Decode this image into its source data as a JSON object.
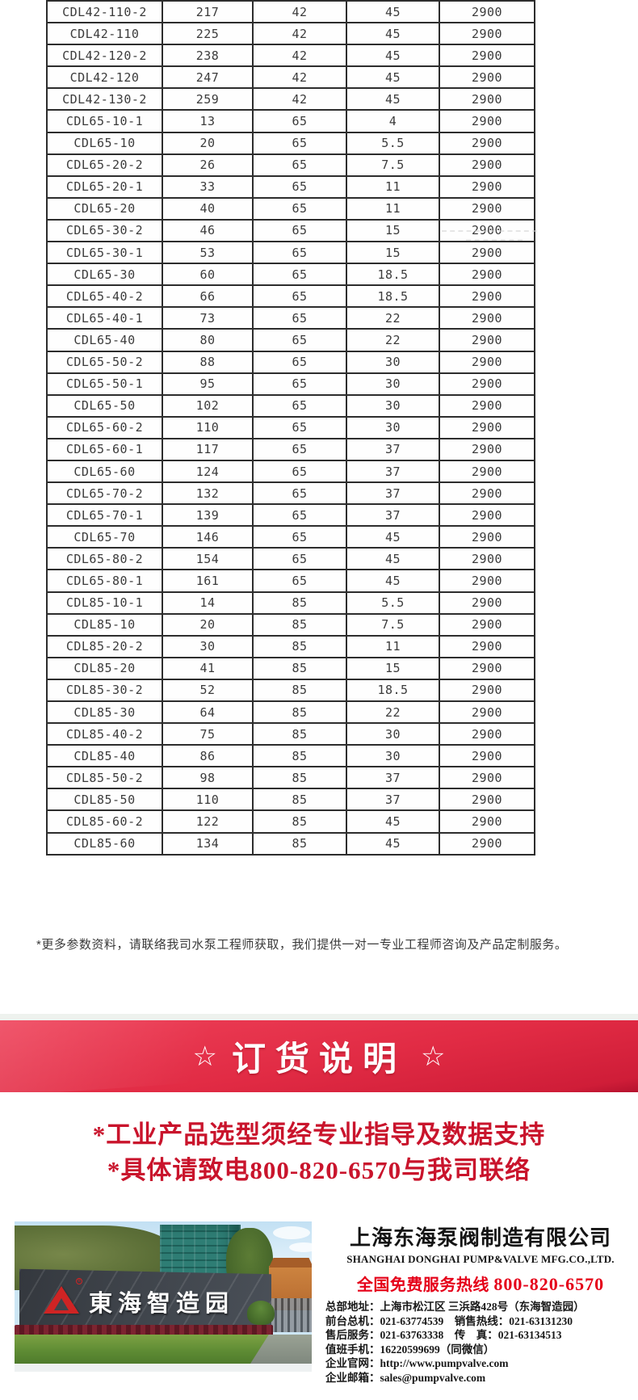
{
  "table": {
    "rows": [
      [
        "CDL42-110-2",
        "217",
        "42",
        "45",
        "2900"
      ],
      [
        "CDL42-110",
        "225",
        "42",
        "45",
        "2900"
      ],
      [
        "CDL42-120-2",
        "238",
        "42",
        "45",
        "2900"
      ],
      [
        "CDL42-120",
        "247",
        "42",
        "45",
        "2900"
      ],
      [
        "CDL42-130-2",
        "259",
        "42",
        "45",
        "2900"
      ],
      [
        "CDL65-10-1",
        "13",
        "65",
        "4",
        "2900"
      ],
      [
        "CDL65-10",
        "20",
        "65",
        "5.5",
        "2900"
      ],
      [
        "CDL65-20-2",
        "26",
        "65",
        "7.5",
        "2900"
      ],
      [
        "CDL65-20-1",
        "33",
        "65",
        "11",
        "2900"
      ],
      [
        "CDL65-20",
        "40",
        "65",
        "11",
        "2900"
      ],
      [
        "CDL65-30-2",
        "46",
        "65",
        "15",
        "2900"
      ],
      [
        "CDL65-30-1",
        "53",
        "65",
        "15",
        "2900"
      ],
      [
        "CDL65-30",
        "60",
        "65",
        "18.5",
        "2900"
      ],
      [
        "CDL65-40-2",
        "66",
        "65",
        "18.5",
        "2900"
      ],
      [
        "CDL65-40-1",
        "73",
        "65",
        "22",
        "2900"
      ],
      [
        "CDL65-40",
        "80",
        "65",
        "22",
        "2900"
      ],
      [
        "CDL65-50-2",
        "88",
        "65",
        "30",
        "2900"
      ],
      [
        "CDL65-50-1",
        "95",
        "65",
        "30",
        "2900"
      ],
      [
        "CDL65-50",
        "102",
        "65",
        "30",
        "2900"
      ],
      [
        "CDL65-60-2",
        "110",
        "65",
        "30",
        "2900"
      ],
      [
        "CDL65-60-1",
        "117",
        "65",
        "37",
        "2900"
      ],
      [
        "CDL65-60",
        "124",
        "65",
        "37",
        "2900"
      ],
      [
        "CDL65-70-2",
        "132",
        "65",
        "37",
        "2900"
      ],
      [
        "CDL65-70-1",
        "139",
        "65",
        "37",
        "2900"
      ],
      [
        "CDL65-70",
        "146",
        "65",
        "45",
        "2900"
      ],
      [
        "CDL65-80-2",
        "154",
        "65",
        "45",
        "2900"
      ],
      [
        "CDL65-80-1",
        "161",
        "65",
        "45",
        "2900"
      ],
      [
        "CDL85-10-1",
        "14",
        "85",
        "5.5",
        "2900"
      ],
      [
        "CDL85-10",
        "20",
        "85",
        "7.5",
        "2900"
      ],
      [
        "CDL85-20-2",
        "30",
        "85",
        "11",
        "2900"
      ],
      [
        "CDL85-20",
        "41",
        "85",
        "15",
        "2900"
      ],
      [
        "CDL85-30-2",
        "52",
        "85",
        "18.5",
        "2900"
      ],
      [
        "CDL85-30",
        "64",
        "85",
        "22",
        "2900"
      ],
      [
        "CDL85-40-2",
        "75",
        "85",
        "30",
        "2900"
      ],
      [
        "CDL85-40",
        "86",
        "85",
        "30",
        "2900"
      ],
      [
        "CDL85-50-2",
        "98",
        "85",
        "37",
        "2900"
      ],
      [
        "CDL85-50",
        "110",
        "85",
        "37",
        "2900"
      ],
      [
        "CDL85-60-2",
        "122",
        "85",
        "45",
        "2900"
      ],
      [
        "CDL85-60",
        "134",
        "85",
        "45",
        "2900"
      ]
    ]
  },
  "note": "*更多参数资料，请联络我司水泵工程师获取，我们提供一对一专业工程师咨询及产品定制服务。",
  "banner": {
    "star_left": "☆",
    "title": "订货说明",
    "star_right": "☆"
  },
  "notice": {
    "line1": "*工业产品选型须经专业指导及数据支持",
    "line2": "*具体请致电800-820-6570与我司联络"
  },
  "photo": {
    "sign_text": "東海智造园",
    "logo_reg_mark": "®"
  },
  "company": {
    "name_cn": "上海东海泵阀制造有限公司",
    "name_en": "SHANGHAI DONGHAI PUMP&VALVE MFG.CO.,LTD.",
    "hotline_label": "全国免费服务热线",
    "hotline_number": "800-820-6570",
    "contact_lines": [
      "总部地址：上海市松江区 三浜路428号（东海智造园）",
      "前台总机：021-63774539　销售热线：021-63131230",
      "售后服务：021-63763338　传　真：021-63134513",
      "值班手机：16220599699（同微信）",
      "企业官网：http://www.pumpvalve.com",
      "企业邮箱：sales@pumpvalve.com"
    ]
  },
  "colors": {
    "banner_red": "#e12b44",
    "notice_red": "#c9142c",
    "hotline_red": "#e50019",
    "table_border": "#2d2d2d"
  }
}
